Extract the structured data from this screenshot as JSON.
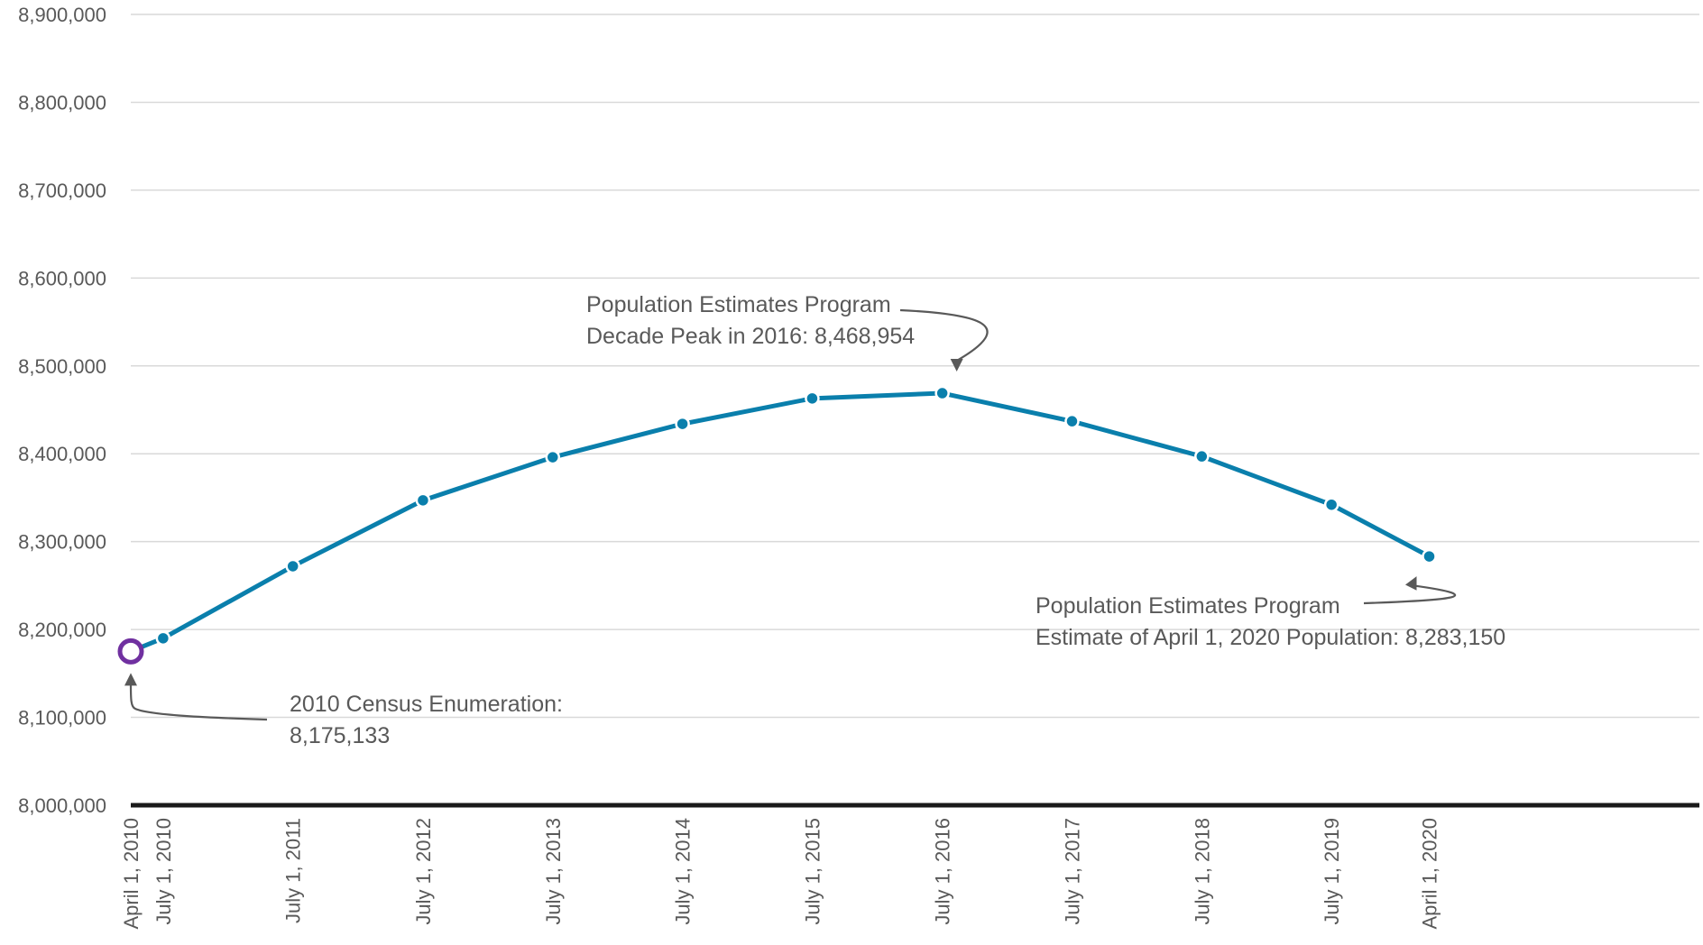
{
  "chart_data": {
    "type": "line",
    "title": "",
    "xlabel": "",
    "ylabel": "",
    "ylim": [
      8000000,
      8900000
    ],
    "yticks": [
      8000000,
      8100000,
      8200000,
      8300000,
      8400000,
      8500000,
      8600000,
      8700000,
      8800000,
      8900000
    ],
    "ytick_labels": [
      "8,000,000",
      "8,100,000",
      "8,200,000",
      "8,300,000",
      "8,400,000",
      "8,500,000",
      "8,600,000",
      "8,700,000",
      "8,800,000",
      "8,900,000"
    ],
    "x": [
      "2010-04-01",
      "2010-07-01",
      "2011-07-01",
      "2012-07-01",
      "2013-07-01",
      "2014-07-01",
      "2015-07-01",
      "2016-07-01",
      "2017-07-01",
      "2018-07-01",
      "2019-07-01",
      "2020-04-01"
    ],
    "x_labels": [
      "April 1, 2010",
      "July 1, 2010",
      "July 1, 2011",
      "July 1, 2012",
      "July 1, 2013",
      "July 1, 2014",
      "July 1, 2015",
      "July 1, 2016",
      "July 1, 2017",
      "July 1, 2018",
      "July 1, 2019",
      "April 1, 2020"
    ],
    "xlim": [
      "2010-04-01",
      "2022-05-01"
    ],
    "series": [
      {
        "values": [
          8175133,
          8190000,
          8272000,
          8347000,
          8396000,
          8434000,
          8463000,
          8468954,
          8437000,
          8397000,
          8342000,
          8283150
        ],
        "color": "#0a7fac",
        "census_point_color": "#7030a0"
      }
    ],
    "grid": true,
    "legend": "none",
    "annotations": [
      {
        "lines": [
          "Population Estimates Program",
          "Decade Peak in 2016: 8,468,954"
        ],
        "target_date": "2016-07-01",
        "target_value": 8468954
      },
      {
        "lines": [
          "Population Estimates Program",
          "Estimate of April 1, 2020 Population: 8,283,150"
        ],
        "target_date": "2020-04-01",
        "target_value": 8283150
      },
      {
        "lines": [
          "2010 Census Enumeration:",
          "8,175,133"
        ],
        "target_date": "2010-04-01",
        "target_value": 8175133
      }
    ]
  }
}
